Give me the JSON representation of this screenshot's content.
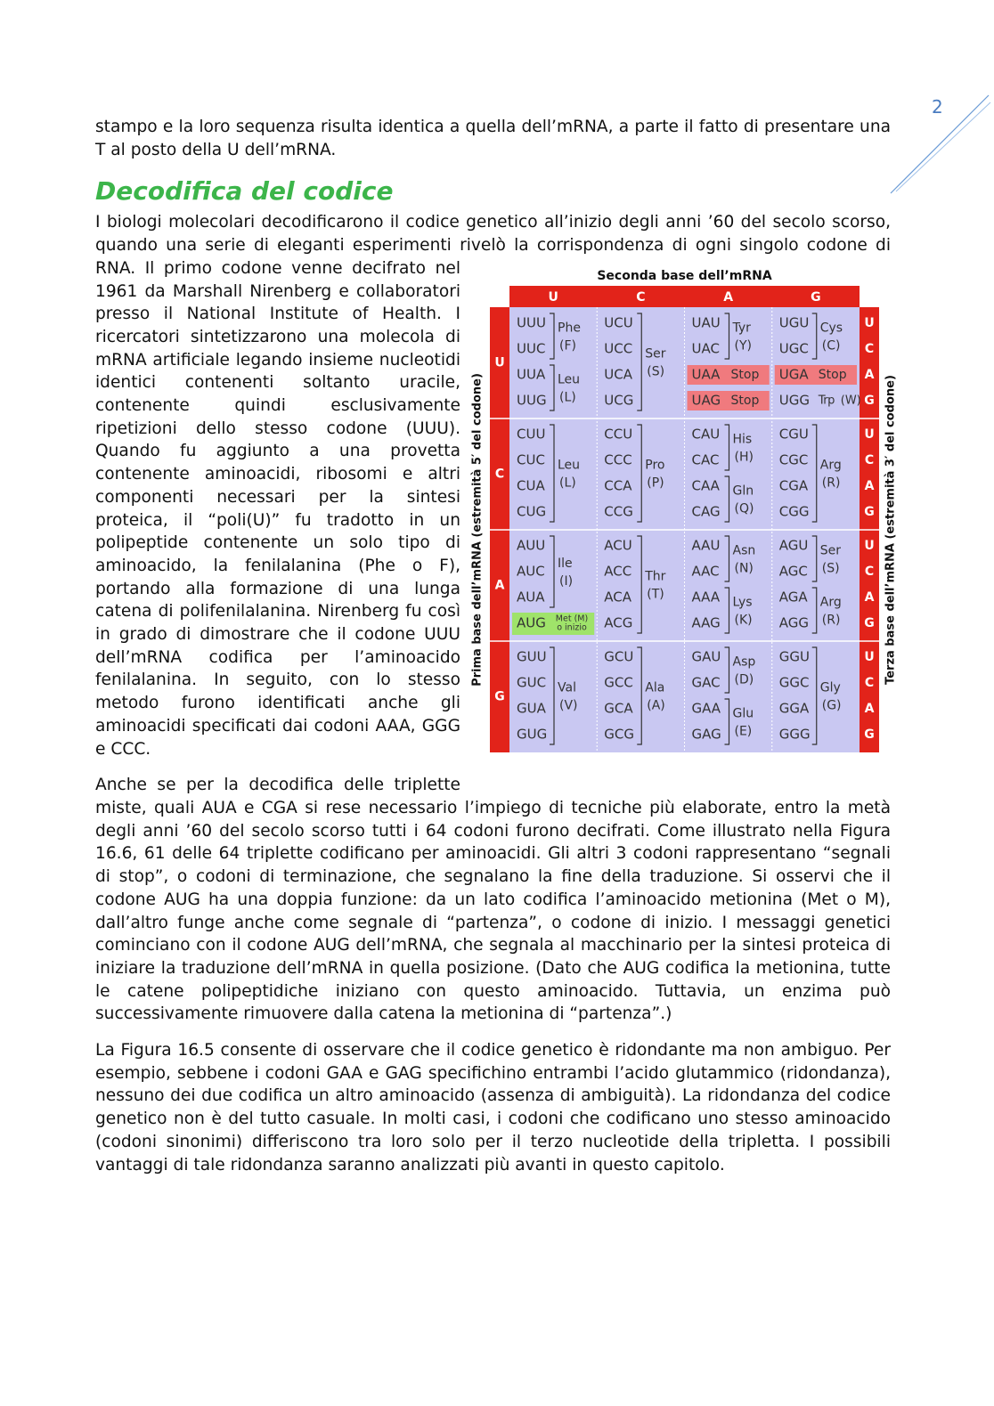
{
  "page_number": "2",
  "paragraphs": [
    "stampo e la loro sequenza risulta identica a quella dell’mRNA, a parte il fatto di presentare una T al posto della U dell’mRNA.",
    "I biologi molecolari decodificarono il codice genetico all’inizio degli anni ’60 del secolo scorso, quando una serie di eleganti esperimenti rivelò la corrispondenza di ogni singolo codone di RNA. Il primo codone venne decifrato nel 1961 da Marshall Nirenberg e collaboratori presso il National Institute of Health. I ricercatori sintetizzarono una molecola di mRNA artificiale legando insieme nucleotidi identici contenenti soltanto uracile, contenente quindi esclusivamente ripetizioni dello stesso codone (UUU). Quando fu aggiunto a una provetta contenente aminoacidi, ribosomi e altri componenti necessari per la sintesi proteica, il “poli(U)” fu tradotto in un polipeptide contenente un solo tipo di aminoacido, la fenilalanina (Phe o F), portando alla formazione di una lunga catena di polifenilalanina. Nirenberg fu così in grado di dimostrare che il codone UUU dell’mRNA codifica per l’aminoacido fenilalanina. In seguito, con lo stesso metodo furono identificati anche gli aminoacidi specificati dai codoni AAA, GGG e CCC.",
    "Anche se per la decodifica delle triplette miste, quali AUA e CGA si rese necessario l’impiego di tecniche più elaborate, entro la metà degli anni ’60 del secolo scorso tutti i 64 codoni furono decifrati. Come illustrato nella Figura 16.6, 61 delle 64 triplette codificano per aminoacidi. Gli altri 3 codoni rappresentano “segnali di stop”, o codoni di terminazione, che segnalano la fine della traduzione. Si osservi che il codone AUG ha una doppia funzione: da un lato codifica l’aminoacido metionina (Met o M), dall’altro funge anche come segnale di “partenza”, o codone di inizio. I messaggi genetici cominciano con il codone AUG dell’mRNA, che segnala al macchinario per la sintesi proteica di iniziare la traduzione dell’mRNA in quella posizione. (Dato che AUG codifica la metionina, tutte le catene polipeptidiche iniziano con questo aminoacido. Tuttavia, un enzima può successivamente rimuovere dalla catena la metionina di “partenza”.)",
    "La Figura 16.5 consente di osservare che il codice genetico è ridondante ma non ambiguo. Per esempio, sebbene i codoni GAA e GAG specifichino entrambi l’acido glutammico (ridondanza), nessuno dei due codifica un altro aminoacido (assenza di ambiguità). La ridondanza del codice genetico non è del tutto casuale. In molti casi, i codoni che codificano uno stesso aminoacido (codoni sinonimi) differiscono tra loro solo per il terzo nucleotide della tripletta. I possibili vantaggi di tale ridondanza saranno analizzati più avanti in questo capitolo."
  ],
  "heading": "Decodifica del codice",
  "figure": {
    "title": "Seconda base dell’mRNA",
    "left_label": "Prima base dell’mRNA (estremità 5′ del codone)",
    "right_label": "Terza base dell’mRNA (estremità 3′ del codone)",
    "second_bases": [
      "U",
      "C",
      "A",
      "G"
    ],
    "rows": [
      {
        "base": "U",
        "third_bases": [
          "U",
          "C",
          "A",
          "G"
        ],
        "cells": [
          {
            "groups": [
              {
                "codons": [
                  "UUU",
                  "UUC"
                ],
                "amino": "Phe",
                "code": "(F)"
              },
              {
                "codons": [
                  "UUA",
                  "UUG"
                ],
                "amino": "Leu",
                "code": "(L)"
              }
            ]
          },
          {
            "groups": [
              {
                "codons": [
                  "UCU",
                  "UCC",
                  "UCA",
                  "UCG"
                ],
                "amino": "Ser",
                "code": "(S)"
              }
            ]
          },
          {
            "groups": [
              {
                "codons": [
                  "UAU",
                  "UAC"
                ],
                "amino": "Tyr",
                "code": "(Y)"
              },
              {
                "codons": [
                  "UAA"
                ],
                "amino": "Stop",
                "kind": "stop"
              },
              {
                "codons": [
                  "UAG"
                ],
                "amino": "Stop",
                "kind": "stop"
              }
            ]
          },
          {
            "groups": [
              {
                "codons": [
                  "UGU",
                  "UGC"
                ],
                "amino": "Cys",
                "code": "(C)"
              },
              {
                "codons": [
                  "UGA"
                ],
                "amino": "Stop",
                "kind": "stop"
              },
              {
                "codons": [
                  "UGG"
                ],
                "amino": "Trp",
                "code": "(W)",
                "kind": "single"
              }
            ]
          }
        ]
      },
      {
        "base": "C",
        "third_bases": [
          "U",
          "C",
          "A",
          "G"
        ],
        "cells": [
          {
            "groups": [
              {
                "codons": [
                  "CUU",
                  "CUC",
                  "CUA",
                  "CUG"
                ],
                "amino": "Leu",
                "code": "(L)"
              }
            ]
          },
          {
            "groups": [
              {
                "codons": [
                  "CCU",
                  "CCC",
                  "CCA",
                  "CCG"
                ],
                "amino": "Pro",
                "code": "(P)"
              }
            ]
          },
          {
            "groups": [
              {
                "codons": [
                  "CAU",
                  "CAC"
                ],
                "amino": "His",
                "code": "(H)"
              },
              {
                "codons": [
                  "CAA",
                  "CAG"
                ],
                "amino": "Gln",
                "code": "(Q)"
              }
            ]
          },
          {
            "groups": [
              {
                "codons": [
                  "CGU",
                  "CGC",
                  "CGA",
                  "CGG"
                ],
                "amino": "Arg",
                "code": "(R)"
              }
            ]
          }
        ]
      },
      {
        "base": "A",
        "third_bases": [
          "U",
          "C",
          "A",
          "G"
        ],
        "cells": [
          {
            "groups": [
              {
                "codons": [
                  "AUU",
                  "AUC",
                  "AUA"
                ],
                "amino": "Ile",
                "code": "(I)"
              },
              {
                "codons": [
                  "AUG"
                ],
                "amino": "Met (M)",
                "note": "o inizio",
                "kind": "start"
              }
            ]
          },
          {
            "groups": [
              {
                "codons": [
                  "ACU",
                  "ACC",
                  "ACA",
                  "ACG"
                ],
                "amino": "Thr",
                "code": "(T)"
              }
            ]
          },
          {
            "groups": [
              {
                "codons": [
                  "AAU",
                  "AAC"
                ],
                "amino": "Asn",
                "code": "(N)"
              },
              {
                "codons": [
                  "AAA",
                  "AAG"
                ],
                "amino": "Lys",
                "code": "(K)"
              }
            ]
          },
          {
            "groups": [
              {
                "codons": [
                  "AGU",
                  "AGC"
                ],
                "amino": "Ser",
                "code": "(S)"
              },
              {
                "codons": [
                  "AGA",
                  "AGG"
                ],
                "amino": "Arg",
                "code": "(R)"
              }
            ]
          }
        ]
      },
      {
        "base": "G",
        "third_bases": [
          "U",
          "C",
          "A",
          "G"
        ],
        "cells": [
          {
            "groups": [
              {
                "codons": [
                  "GUU",
                  "GUC",
                  "GUA",
                  "GUG"
                ],
                "amino": "Val",
                "code": "(V)"
              }
            ]
          },
          {
            "groups": [
              {
                "codons": [
                  "GCU",
                  "GCC",
                  "GCA",
                  "GCG"
                ],
                "amino": "Ala",
                "code": "(A)"
              }
            ]
          },
          {
            "groups": [
              {
                "codons": [
                  "GAU",
                  "GAC"
                ],
                "amino": "Asp",
                "code": "(D)"
              },
              {
                "codons": [
                  "GAA",
                  "GAG"
                ],
                "amino": "Glu",
                "code": "(E)"
              }
            ]
          },
          {
            "groups": [
              {
                "codons": [
                  "GGU",
                  "GGC",
                  "GGA",
                  "GGG"
                ],
                "amino": "Gly",
                "code": "(G)"
              }
            ]
          }
        ]
      }
    ]
  }
}
